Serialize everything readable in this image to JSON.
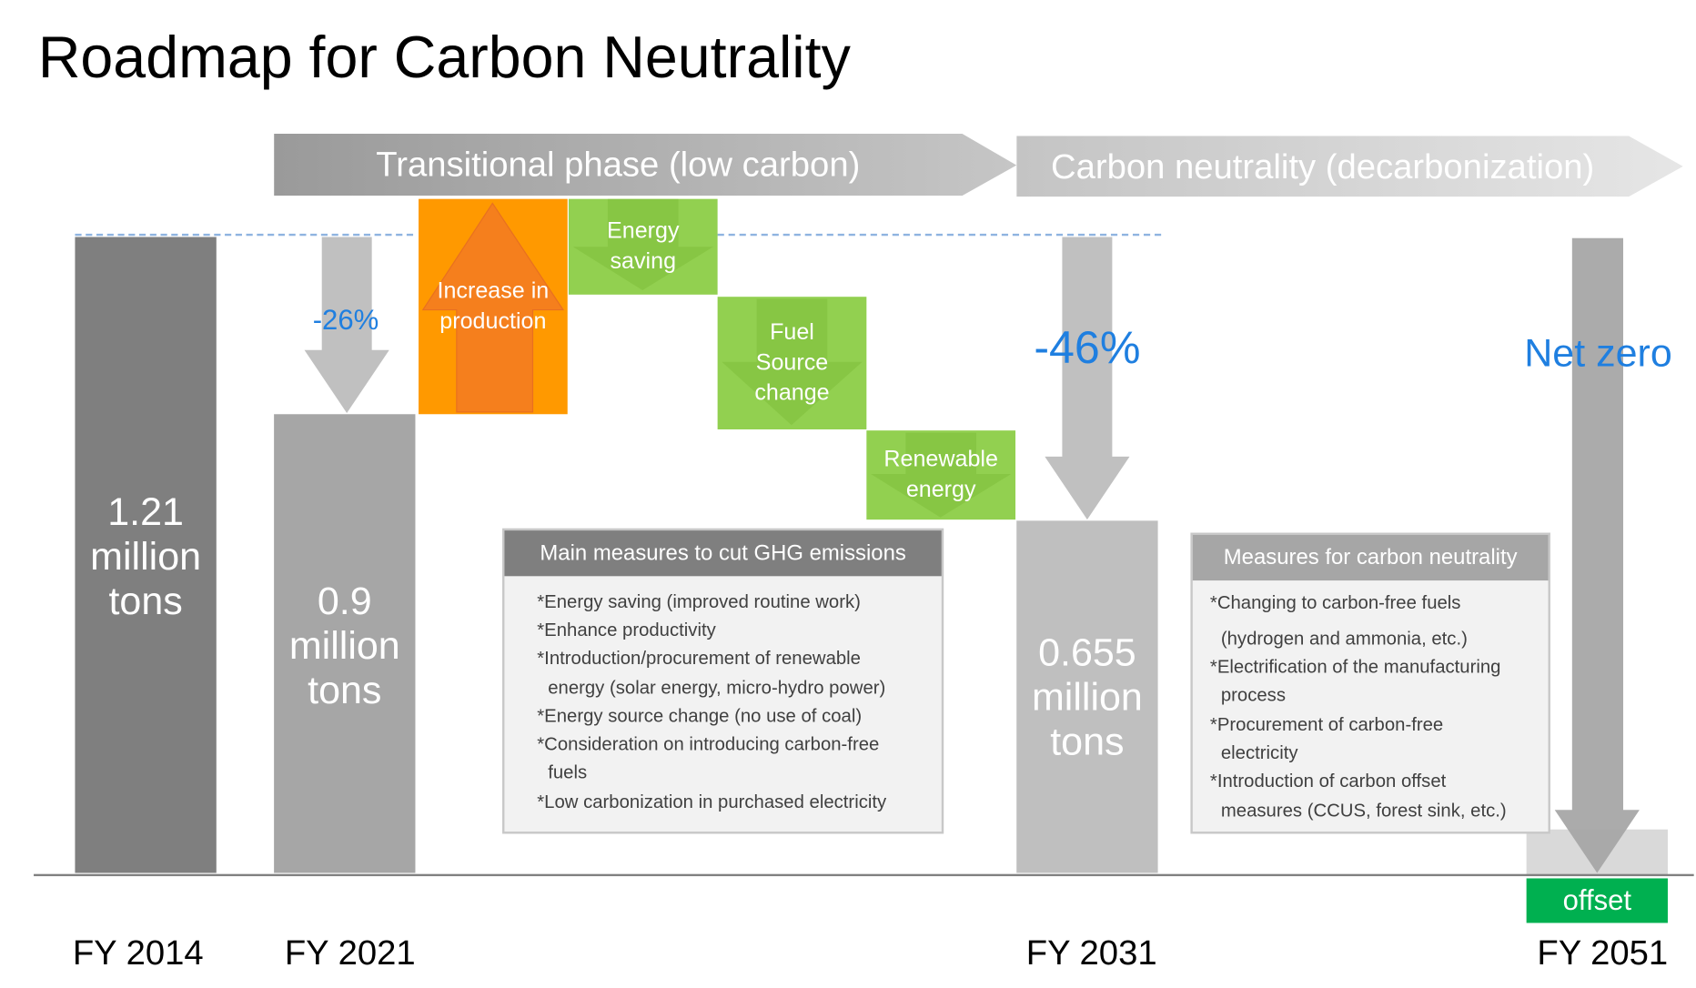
{
  "title": "Roadmap for Carbon Neutrality",
  "phases": [
    {
      "label": "Transitional phase (low carbon)"
    },
    {
      "label": "Carbon neutrality (decarbonization)"
    }
  ],
  "bars": [
    {
      "year": "FY 2014",
      "value": "1.21",
      "unit1": "million",
      "unit2": "tons",
      "color": "#7f7f7f"
    },
    {
      "year": "FY 2021",
      "value": "0.9",
      "unit1": "million",
      "unit2": "tons",
      "color": "#a6a6a6"
    },
    {
      "year": "FY 2031",
      "value": "0.655",
      "unit1": "million",
      "unit2": "tons",
      "color": "#bfbfbf"
    },
    {
      "year": "FY 2051"
    }
  ],
  "reductions": {
    "fy2021": "-26%",
    "fy2031": "-46%",
    "fy2051": "Net zero",
    "color": "#1f7fe0"
  },
  "factors": [
    {
      "line1": "Increase in",
      "line2": "production",
      "color": "#ff9900",
      "direction": "up"
    },
    {
      "line1": "Energy",
      "line2": "saving",
      "color": "#92d050",
      "direction": "down"
    },
    {
      "line1": "Fuel",
      "line2": "Source",
      "line3": "change",
      "color": "#92d050",
      "direction": "down"
    },
    {
      "line1": "Renewable",
      "line2": "energy",
      "color": "#92d050",
      "direction": "down"
    }
  ],
  "ghg_measures": {
    "header": "Main measures to cut GHG emissions",
    "lines": [
      "*Energy saving (improved routine work)",
      "*Enhance productivity",
      "*Introduction/procurement of renewable",
      "energy (solar energy, micro-hydro power)",
      "*Energy source change (no use of coal)",
      "*Consideration on introducing carbon-free",
      "fuels",
      "*Low carbonization in purchased electricity"
    ]
  },
  "neutrality_measures": {
    "header": "Measures for carbon neutrality",
    "lines": [
      "*Changing to carbon-free fuels",
      "(hydrogen and ammonia, etc.)",
      "*Electrification of the manufacturing",
      "process",
      "*Procurement of carbon-free",
      "electricity",
      "*Introduction of carbon offset",
      "measures (CCUS, forest sink, etc.)"
    ]
  },
  "offset": {
    "label": "offset",
    "color": "#00b050"
  }
}
